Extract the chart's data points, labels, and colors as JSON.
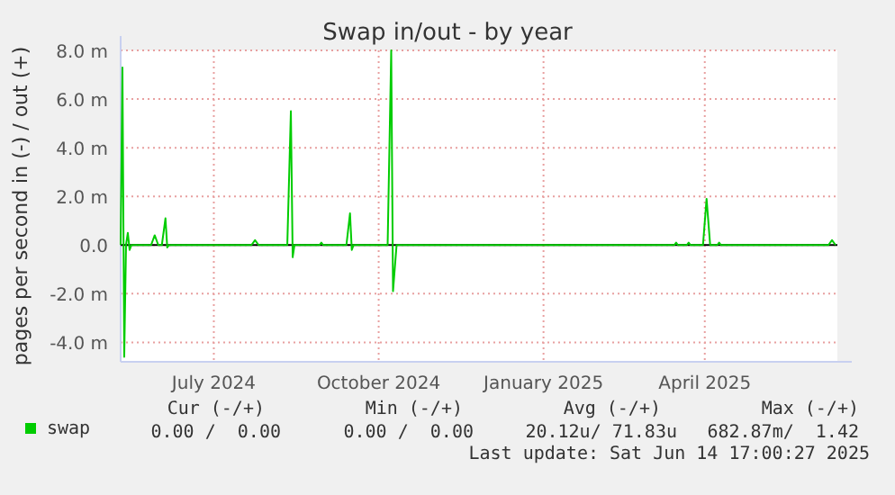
{
  "chart_data": {
    "type": "line",
    "title": "Swap in/out - by year",
    "ylabel": "pages per second in (-) / out (+)",
    "xlim": [
      "2024-05-10",
      "2025-06-14"
    ],
    "xticks": [
      {
        "value": "2024-07-01",
        "label": "July 2024"
      },
      {
        "value": "2024-10-01",
        "label": "October 2024"
      },
      {
        "value": "2025-01-01",
        "label": "January 2025"
      },
      {
        "value": "2025-04-01",
        "label": "April 2025"
      }
    ],
    "ylim": [
      -4.8,
      8
    ],
    "yticks": [
      {
        "value": -4,
        "label": "-4.0 m"
      },
      {
        "value": -2,
        "label": "-2.0 m"
      },
      {
        "value": 0,
        "label": "0.0"
      },
      {
        "value": 2,
        "label": "2.0 m"
      },
      {
        "value": 4,
        "label": "4.0 m"
      },
      {
        "value": 6,
        "label": "6.0 m"
      },
      {
        "value": 8,
        "label": "8.0 m"
      }
    ],
    "grid": true,
    "legend": "bottom",
    "marker": "none",
    "line_style": "solid",
    "ref_lines": [
      {
        "axis": "y",
        "value": 0,
        "color": "#000000"
      }
    ],
    "series": [
      {
        "name": "swap",
        "color": "#00cc00",
        "x": [
          "2024-05-10",
          "2024-05-11",
          "2024-05-12",
          "2024-05-13",
          "2024-05-14",
          "2024-05-15",
          "2024-05-16",
          "2024-05-27",
          "2024-05-29",
          "2024-05-31",
          "2024-06-02",
          "2024-06-04",
          "2024-06-05",
          "2024-06-06",
          "2024-07-22",
          "2024-07-24",
          "2024-07-26",
          "2024-08-11",
          "2024-08-13",
          "2024-08-14",
          "2024-08-15",
          "2024-08-29",
          "2024-08-30",
          "2024-08-31",
          "2024-09-13",
          "2024-09-15",
          "2024-09-16",
          "2024-09-17",
          "2024-10-06",
          "2024-10-08",
          "2024-10-09",
          "2024-10-11",
          "2025-03-15",
          "2025-03-16",
          "2025-03-17",
          "2025-03-22",
          "2025-03-23",
          "2025-03-24",
          "2025-03-31",
          "2025-04-02",
          "2025-04-04",
          "2025-04-08",
          "2025-04-09",
          "2025-04-10",
          "2025-06-09",
          "2025-06-11",
          "2025-06-13"
        ],
        "values": [
          0,
          7.3,
          -4.6,
          0,
          0.5,
          -0.2,
          0,
          0,
          0.4,
          0,
          0,
          1.1,
          -0.1,
          0,
          0,
          0.2,
          0,
          0,
          5.5,
          -0.5,
          0,
          0,
          0.1,
          0,
          0,
          1.3,
          -0.2,
          0,
          0,
          8,
          -1.9,
          0,
          0,
          0.1,
          0,
          0,
          0.1,
          0,
          0,
          1.9,
          0,
          0,
          0.1,
          0,
          0,
          0.2,
          0
        ]
      }
    ],
    "annotations": [
      "Cur (-/+)",
      "Min (-/+)",
      "Avg (-/+)",
      "Max (-/+)",
      "0.00 /  0.00",
      "0.00 /  0.00",
      "20.12u/ 71.83u",
      "682.87m/  1.42",
      "Last update: Sat Jun 14 17:00:27 2025"
    ]
  }
}
